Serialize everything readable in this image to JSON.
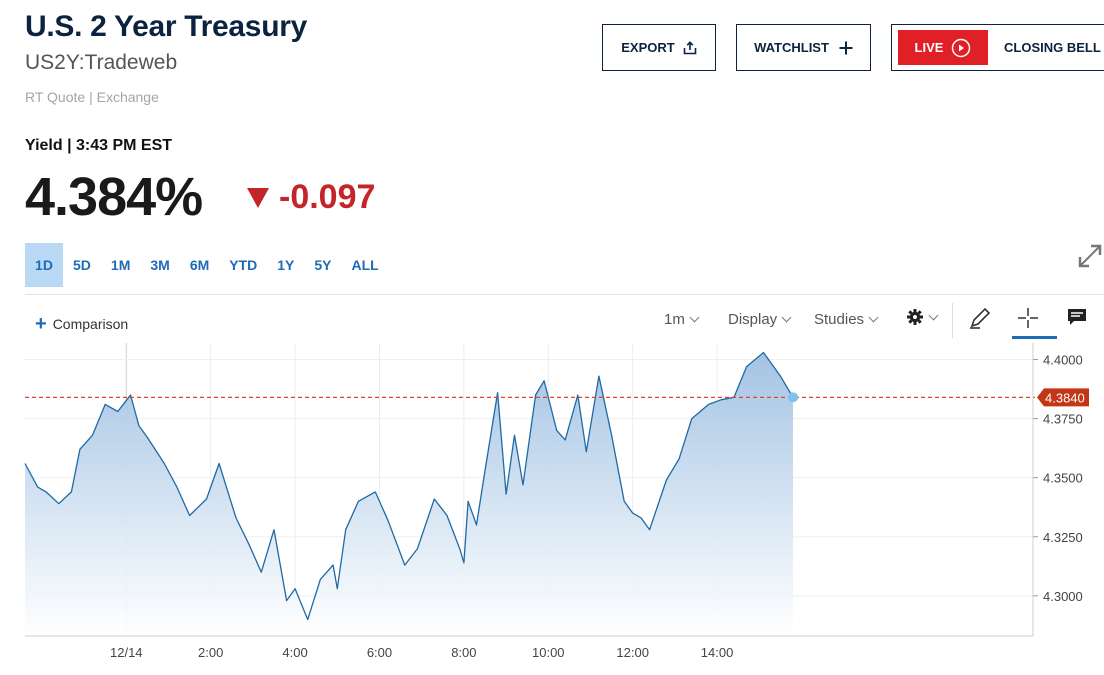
{
  "header": {
    "title": "U.S. 2 Year Treasury",
    "symbol": "US2Y:Tradeweb",
    "quote_source": "RT Quote | Exchange"
  },
  "actions": {
    "export_label": "EXPORT",
    "watchlist_label": "WATCHLIST",
    "live_label": "LIVE",
    "closing_bell_label": "CLOSING BELL"
  },
  "quote": {
    "yield_line": "Yield | 3:43 PM EST",
    "price": "4.384%",
    "change": "-0.097",
    "change_direction": "down"
  },
  "ranges": [
    "1D",
    "5D",
    "1M",
    "3M",
    "6M",
    "YTD",
    "1Y",
    "5Y",
    "ALL"
  ],
  "active_range": "1D",
  "toolbar": {
    "comparison_label": "Comparison",
    "interval_label": "1m",
    "display_label": "Display",
    "studies_label": "Studies"
  },
  "colors": {
    "brand_navy": "#0c2340",
    "accent_blue": "#1e6bb8",
    "negative_red": "#c4252b",
    "live_red": "#e01f26",
    "line": "#1f6aa5"
  },
  "icons": [
    "share-icon",
    "plus-icon",
    "play-icon",
    "expand-icon",
    "gear-icon",
    "pencil-icon",
    "crosshair-icon",
    "comment-icon"
  ],
  "chart_data": {
    "type": "area",
    "x_tick_labels": [
      "12/14",
      "2:00",
      "4:00",
      "6:00",
      "8:00",
      "10:00",
      "12:00",
      "14:00"
    ],
    "y_tick_labels": [
      "4.4000",
      "4.3750",
      "4.3500",
      "4.3250",
      "4.3000"
    ],
    "ylim": [
      4.283,
      4.407
    ],
    "x_start_hour": 21.6,
    "last_value_label": "4.3840",
    "last_value": 4.384,
    "series": [
      {
        "x": [
          21.6,
          21.9,
          22.1,
          22.4,
          22.7,
          22.9,
          23.2,
          23.5,
          23.8,
          24.1,
          24.3,
          24.5,
          24.9,
          25.2,
          25.5,
          25.9,
          26.2,
          26.6,
          26.9,
          27.2,
          27.5,
          27.8,
          28.0,
          28.3,
          28.6,
          28.9,
          29.0,
          29.2,
          29.5,
          29.9,
          30.2,
          30.6,
          30.9,
          31.3,
          31.6,
          31.9,
          32.0,
          32.1,
          32.3,
          32.5,
          32.8,
          33.0,
          33.2,
          33.4,
          33.7,
          33.9,
          34.2,
          34.4,
          34.7,
          34.9,
          35.2,
          35.5,
          35.8,
          36.0,
          36.2,
          36.4,
          36.8,
          37.1,
          37.4,
          37.8,
          38.1,
          38.4,
          38.7,
          39.1,
          39.5,
          39.8
        ],
        "y": [
          4.356,
          4.346,
          4.344,
          4.339,
          4.344,
          4.362,
          4.368,
          4.381,
          4.378,
          4.385,
          4.372,
          4.367,
          4.356,
          4.346,
          4.334,
          4.341,
          4.356,
          4.333,
          4.322,
          4.31,
          4.328,
          4.298,
          4.303,
          4.29,
          4.307,
          4.313,
          4.303,
          4.328,
          4.34,
          4.344,
          4.332,
          4.313,
          4.32,
          4.341,
          4.334,
          4.32,
          4.314,
          4.34,
          4.33,
          4.353,
          4.386,
          4.343,
          4.368,
          4.347,
          4.385,
          4.391,
          4.37,
          4.366,
          4.385,
          4.361,
          4.393,
          4.368,
          4.34,
          4.335,
          4.333,
          4.328,
          4.349,
          4.358,
          4.375,
          4.381,
          4.383,
          4.384,
          4.397,
          4.403,
          4.393,
          4.384
        ]
      }
    ],
    "grid": true,
    "reference_line": "dashed at last value"
  }
}
